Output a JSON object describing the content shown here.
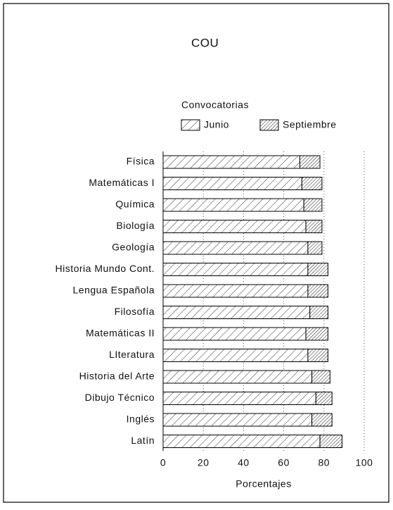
{
  "chart_data": {
    "type": "stacked-barh",
    "title": "COU",
    "legend_title": "Convocatorias",
    "xlabel": "Porcentajes",
    "categories": [
      "Física",
      "Matemáticas I",
      "Química",
      "Biología",
      "Geología",
      "Historia Mundo Cont.",
      "Lengua Española",
      "Filosofía",
      "Matemáticas II",
      "LIteratura",
      "Historia del Arte",
      "Dibujo Técnico",
      "Inglés",
      "Latín"
    ],
    "series": [
      {
        "name": "Junio",
        "color": "#000000",
        "values": [
          68,
          69,
          70,
          71,
          72,
          72,
          72,
          73,
          71,
          72,
          74,
          76,
          74,
          78
        ]
      },
      {
        "name": "Septiembre",
        "color": "#000000",
        "values": [
          10,
          10,
          9,
          8,
          7,
          10,
          10,
          9,
          11,
          10,
          9,
          8,
          10,
          11
        ]
      }
    ],
    "xlim": [
      0,
      100
    ],
    "xticks": [
      0,
      20,
      40,
      60,
      80,
      100
    ],
    "grid": true
  }
}
